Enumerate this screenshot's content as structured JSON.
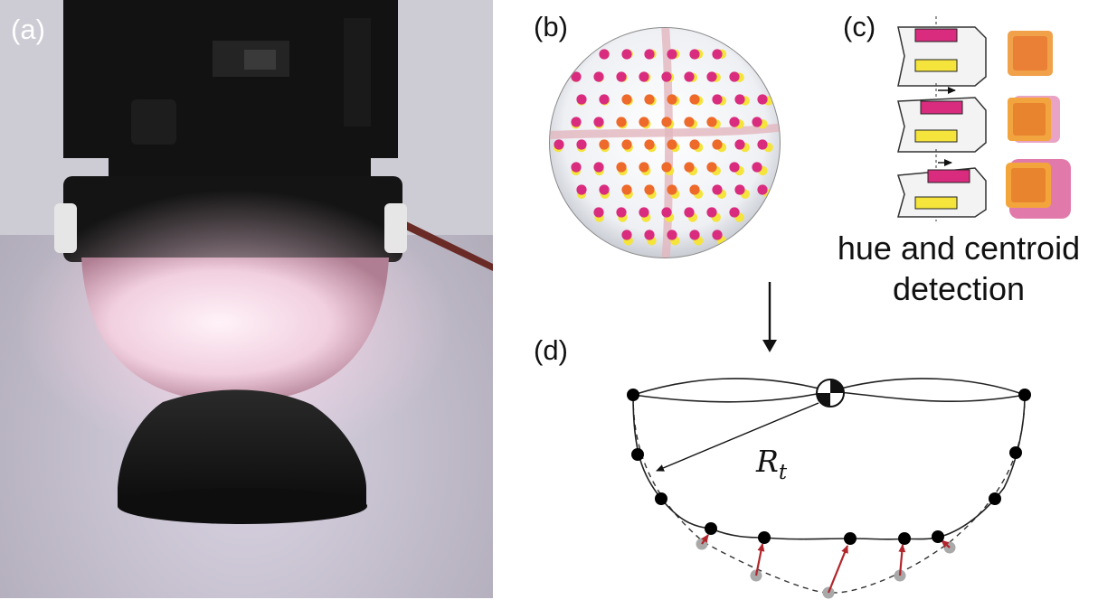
{
  "figure": {
    "panels": {
      "a": {
        "label": "(a)"
      },
      "b": {
        "label": "(b)"
      },
      "c": {
        "label": "(c)",
        "caption_line1": "hue and centroid",
        "caption_line2": "detection"
      },
      "d": {
        "label": "(d)",
        "radius_symbol": "R",
        "radius_subscript": "t"
      }
    },
    "colors": {
      "marker_magenta": "#d92c7f",
      "marker_yellow": "#f4e43c",
      "dot_orange": "#ee6a2b",
      "displacement_arrow": "#b1262c",
      "reference_dot": "#a9a9a9",
      "deformed_dot": "#000000"
    }
  }
}
